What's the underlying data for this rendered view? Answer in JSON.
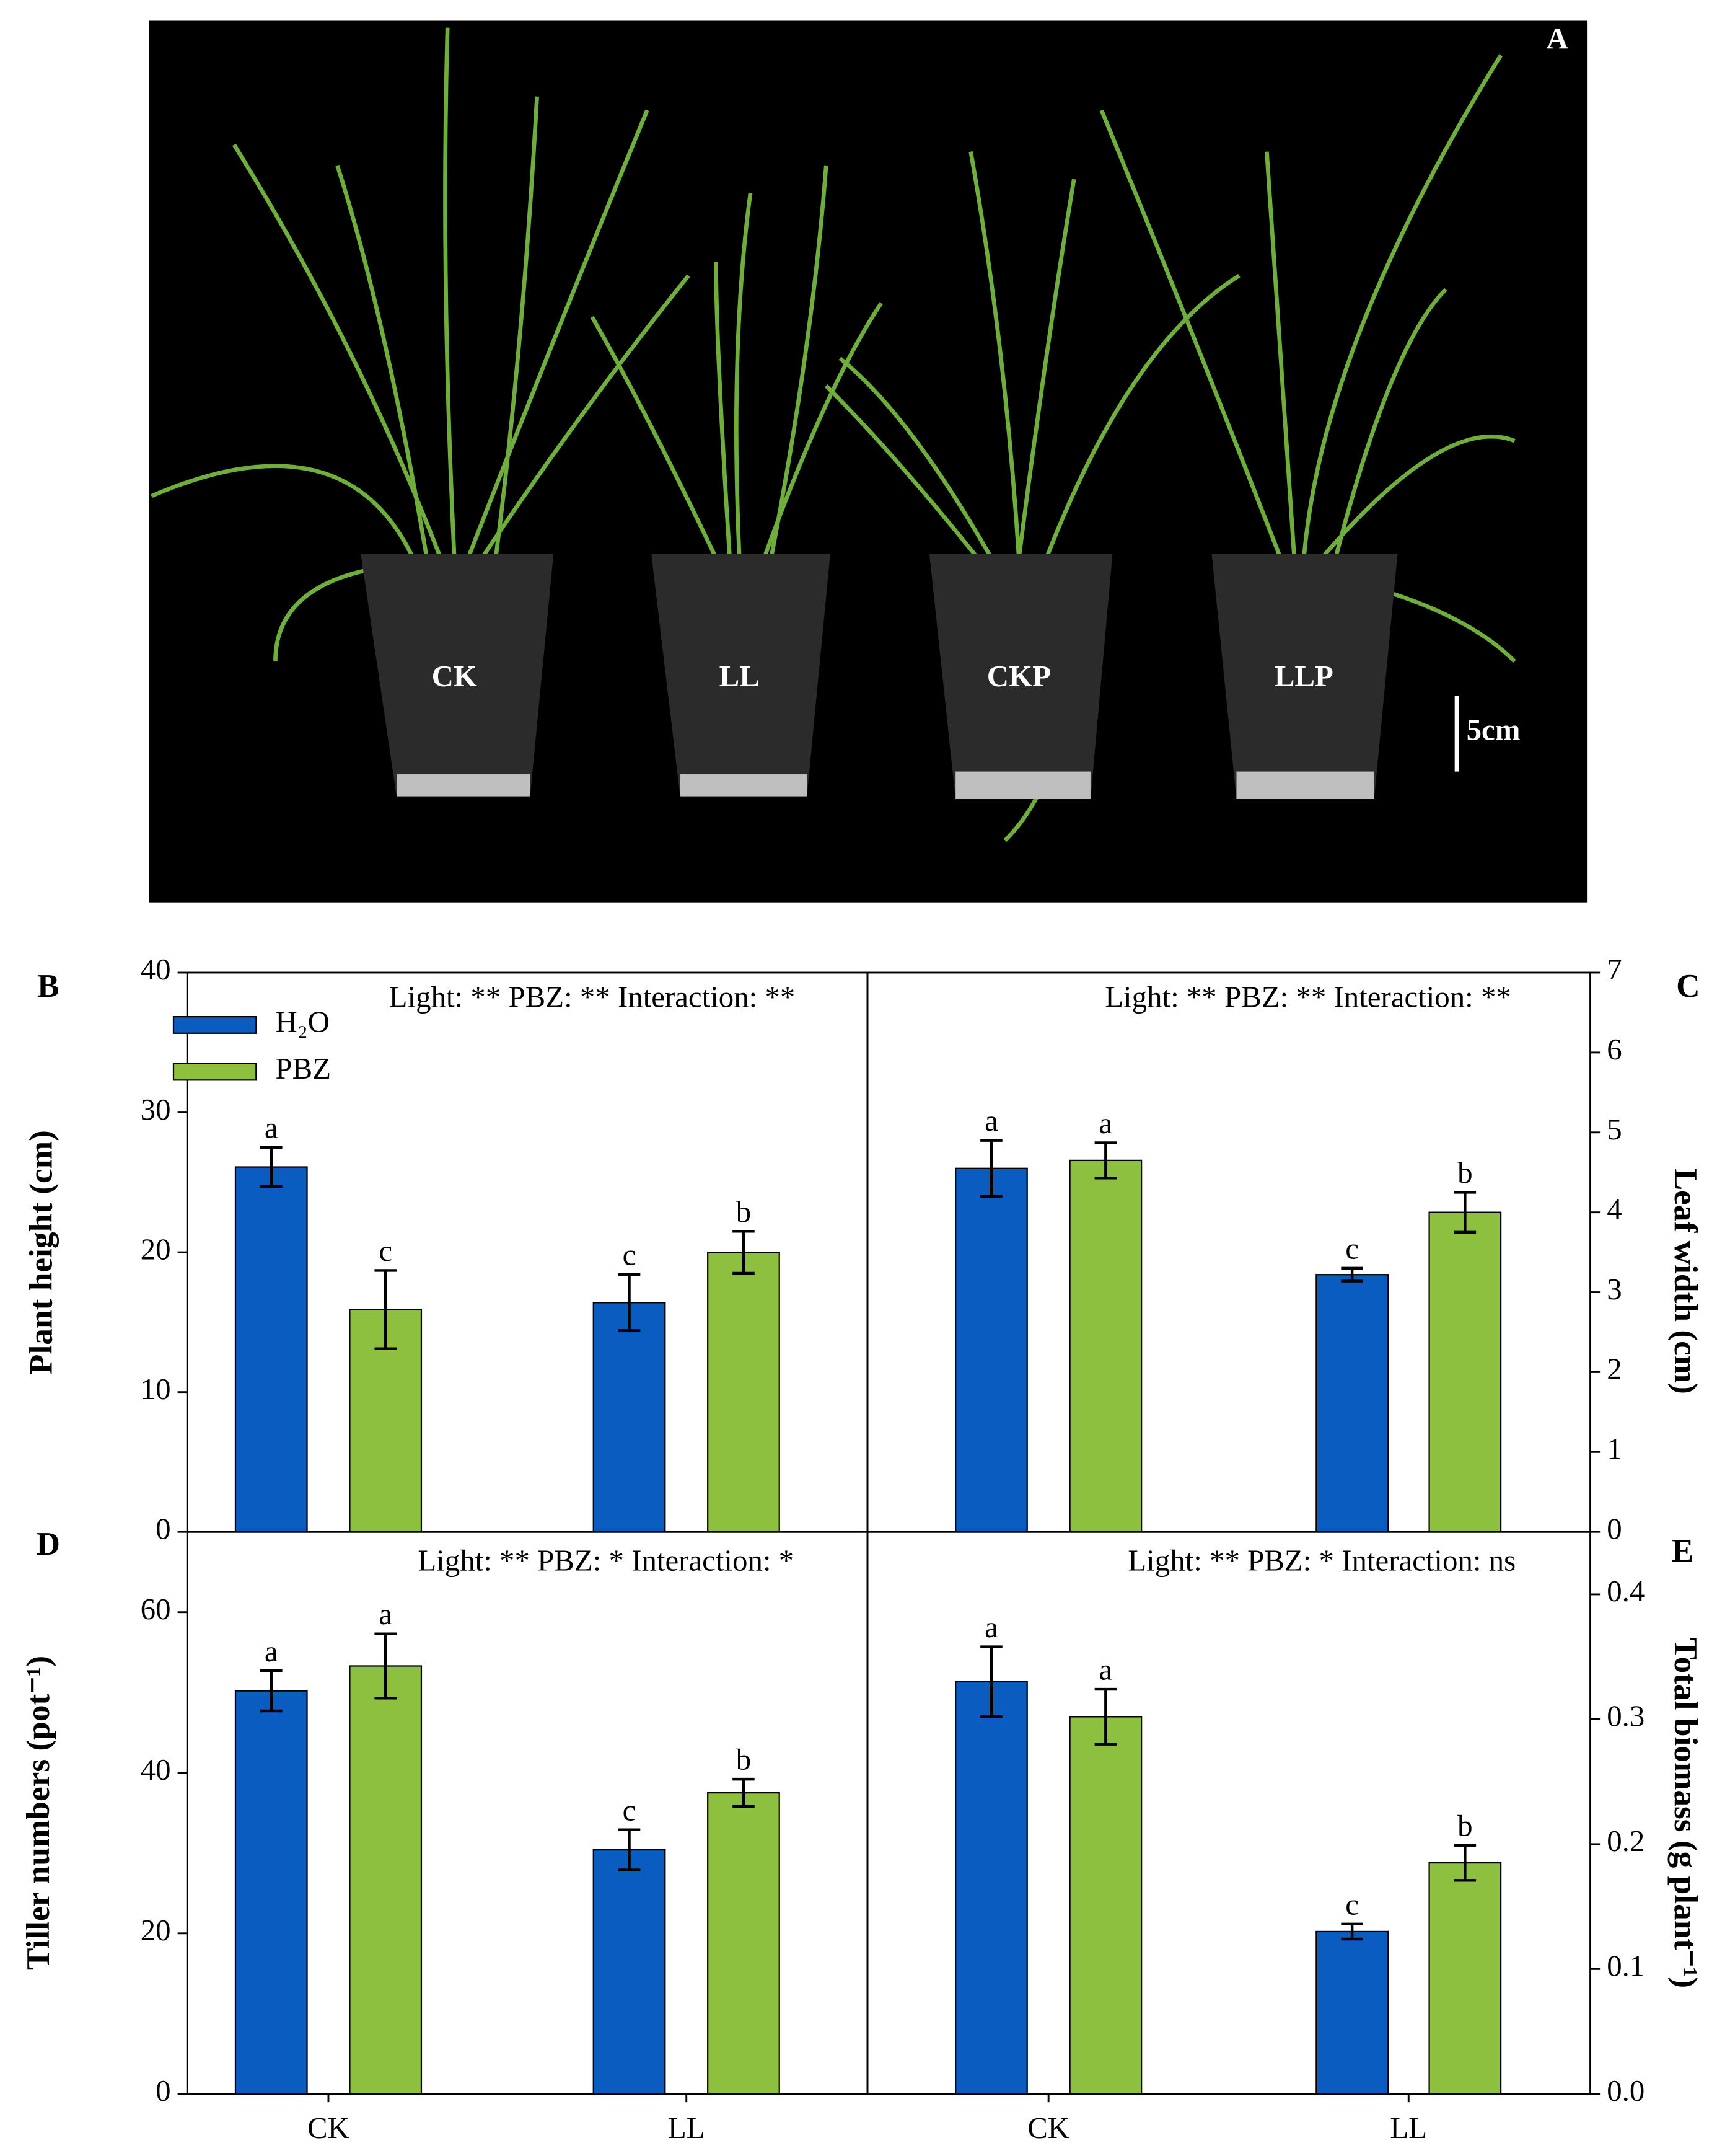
{
  "photo": {
    "label": "A",
    "pots": [
      "CK",
      "LL",
      "CKP",
      "LLP"
    ],
    "scale_bar": "5cm"
  },
  "chart_data": [
    {
      "type": "bar",
      "panel": "B",
      "annotation": "Light: **  PBZ: **  Interaction: **",
      "ylabel": "Plant height (cm)",
      "ylim": [
        0,
        40
      ],
      "yticks": [
        0,
        10,
        20,
        30,
        40
      ],
      "series": [
        {
          "name": "H₂O",
          "color": "#0a5cc0",
          "values": [
            26.1,
            16.4
          ],
          "errors": [
            1.4,
            2.0
          ],
          "letters": [
            "a",
            "c"
          ]
        },
        {
          "name": "PBZ",
          "color": "#8dc03f",
          "values": [
            15.9,
            20.0
          ],
          "errors": [
            2.8,
            1.5
          ],
          "letters": [
            "c",
            "b"
          ]
        }
      ]
    },
    {
      "type": "bar",
      "panel": "C",
      "annotation": "Light: **  PBZ: **  Interaction: **",
      "ylabel": "Leaf width (cm)",
      "ylim": [
        0,
        7
      ],
      "yticks": [
        0,
        1,
        2,
        3,
        4,
        5,
        6,
        7
      ],
      "series": [
        {
          "color": "#0a5cc0",
          "values": [
            4.55,
            3.22
          ],
          "errors": [
            0.35,
            0.08
          ],
          "letters": [
            "a",
            "c"
          ]
        },
        {
          "color": "#8dc03f",
          "values": [
            4.65,
            4.0
          ],
          "errors": [
            0.22,
            0.25
          ],
          "letters": [
            "a",
            "b"
          ]
        }
      ]
    },
    {
      "type": "bar",
      "panel": "D",
      "annotation": "Light: ** PBZ: *  Interaction: *",
      "ylabel": "Tiller numbers (pot⁻¹)",
      "categories": [
        "CK",
        "LL"
      ],
      "ylim": [
        0,
        70
      ],
      "yticks": [
        0,
        20,
        40,
        60
      ],
      "series": [
        {
          "color": "#0a5cc0",
          "values": [
            50.2,
            30.4
          ],
          "errors": [
            2.5,
            2.5
          ],
          "letters": [
            "a",
            "c"
          ]
        },
        {
          "color": "#8dc03f",
          "values": [
            53.3,
            37.5
          ],
          "errors": [
            4.0,
            1.7
          ],
          "letters": [
            "a",
            "b"
          ]
        }
      ]
    },
    {
      "type": "bar",
      "panel": "E",
      "annotation": "Light: **  PBZ: *  Interaction: ns",
      "ylabel": "Total biomass (g plant⁻¹)",
      "categories": [
        "CK",
        "LL"
      ],
      "ylim": [
        0,
        0.45
      ],
      "yticks": [
        {
          "value": 0,
          "label": "0.0"
        },
        0.1,
        0.2,
        0.3,
        0.4
      ],
      "series": [
        {
          "color": "#0a5cc0",
          "values": [
            0.33,
            0.13
          ],
          "errors": [
            0.028,
            0.006
          ],
          "letters": [
            "a",
            "c"
          ]
        },
        {
          "color": "#8dc03f",
          "values": [
            0.302,
            0.185
          ],
          "errors": [
            0.022,
            0.014
          ],
          "letters": [
            "a",
            "b"
          ]
        }
      ]
    }
  ]
}
